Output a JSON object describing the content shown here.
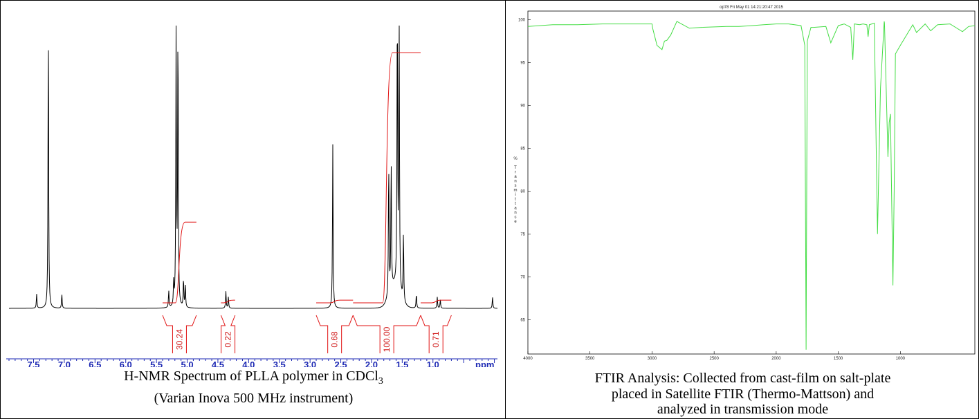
{
  "chart_data": [
    {
      "type": "line",
      "spectrum": "H-NMR",
      "xlabel": "ppm",
      "xlim": [
        7.9,
        -0.05
      ],
      "x_ticks": [
        "7.5",
        "7.0",
        "6.5",
        "6.0",
        "5.5",
        "5.0",
        "4.5",
        "4.0",
        "3.5",
        "3.0",
        "2.5",
        "2.0",
        "1.5",
        "1.0"
      ],
      "x_tick_values": [
        7.5,
        7.0,
        6.5,
        6.0,
        5.5,
        5.0,
        4.5,
        4.0,
        3.5,
        3.0,
        2.5,
        2.0,
        1.5,
        1.0
      ],
      "peaks": [
        {
          "ppm": 7.45,
          "height": 0.05
        },
        {
          "ppm": 7.26,
          "height": 1.0
        },
        {
          "ppm": 7.04,
          "height": 0.05
        },
        {
          "ppm": 5.3,
          "height": 0.06
        },
        {
          "ppm": 5.22,
          "height": 0.08
        },
        {
          "ppm": 5.18,
          "height": 1.0
        },
        {
          "ppm": 5.15,
          "height": 1.0
        },
        {
          "ppm": 5.06,
          "height": 0.1
        },
        {
          "ppm": 5.03,
          "height": 0.08
        },
        {
          "ppm": 4.37,
          "height": 0.06
        },
        {
          "ppm": 4.33,
          "height": 0.04
        },
        {
          "ppm": 2.63,
          "height": 0.58
        },
        {
          "ppm": 1.72,
          "height": 0.47
        },
        {
          "ppm": 1.68,
          "height": 0.45
        },
        {
          "ppm": 1.58,
          "height": 1.0
        },
        {
          "ppm": 1.55,
          "height": 1.0
        },
        {
          "ppm": 1.48,
          "height": 0.24
        },
        {
          "ppm": 1.27,
          "height": 0.05
        },
        {
          "ppm": 0.93,
          "height": 0.04
        },
        {
          "ppm": 0.88,
          "height": 0.03
        },
        {
          "ppm": 0.03,
          "height": 0.04
        }
      ],
      "integrals": [
        {
          "label": "30.24",
          "from": 5.4,
          "to": 4.85
        },
        {
          "label": "0.22",
          "from": 4.45,
          "to": 4.22
        },
        {
          "label": "0.68",
          "from": 2.9,
          "to": 2.3
        },
        {
          "label": "100.00",
          "from": 2.3,
          "to": 1.2
        },
        {
          "label": "0.71",
          "from": 1.2,
          "to": 0.7
        }
      ]
    },
    {
      "type": "line",
      "spectrum": "FTIR",
      "title": "op78  Fri May 01 14:21:20:47 2015",
      "ylabel": "% Transmittance",
      "ylim": [
        61,
        101
      ],
      "y_ticks": [
        65,
        70,
        75,
        80,
        85,
        90,
        95,
        100
      ],
      "xlim": [
        4000,
        400
      ],
      "x_ticks": [
        4000,
        3500,
        3000,
        2500,
        2000,
        1500,
        1000
      ],
      "series": [
        {
          "x": [
            4000,
            3800,
            3600,
            3400,
            3200,
            3000,
            2995,
            2960,
            2920,
            2900,
            2880,
            2850,
            2800,
            2700,
            2600,
            2400,
            2300,
            2200,
            2100,
            2000,
            1900,
            1800,
            1770,
            1759,
            1750,
            1720,
            1700,
            1600,
            1560,
            1500,
            1452,
            1400,
            1383,
            1370,
            1330,
            1300,
            1270,
            1260,
            1250,
            1230,
            1210,
            1184,
            1160,
            1130,
            1128,
            1100,
            1090,
            1080,
            1060,
            1050,
            1040,
            1000,
            900,
            870,
            800,
            756,
            700,
            600,
            500,
            450,
            400
          ],
          "y": [
            99.2,
            99.4,
            99.4,
            99.5,
            99.5,
            99.5,
            99.0,
            97.0,
            96.5,
            97.5,
            97.6,
            98.2,
            99.8,
            99.0,
            99.1,
            99.2,
            99.2,
            99.3,
            99.4,
            99.5,
            99.5,
            99.3,
            97.0,
            61.5,
            97.5,
            99.1,
            99.1,
            99.2,
            97.3,
            99.3,
            99.5,
            99.1,
            95.3,
            99.5,
            99.4,
            99.5,
            99.4,
            98.0,
            99.4,
            99.5,
            99.6,
            75.0,
            92.0,
            99.8,
            99.6,
            84.0,
            88.0,
            89.0,
            69.0,
            80.0,
            96.0,
            97.0,
            99.4,
            98.5,
            99.5,
            98.7,
            99.4,
            99.5,
            98.6,
            99.2,
            99.3
          ]
        }
      ]
    }
  ],
  "nmr": {
    "ppm_label": "ppm",
    "caption_line1_prefix": "H-NMR Spectrum of PLLA polymer in CDCl",
    "caption_line1_sub": "3",
    "caption_line2": "(Varian Inova 500 MHz instrument)"
  },
  "ftir": {
    "title": "op78  Fri May 01 14:21:20:47 2015",
    "ylabel": "% Transmittance",
    "caption_line1": "FTIR Analysis: Collected from cast-film on salt-plate",
    "caption_line2": "placed in Satellite FTIR (Thermo-Mattson) and",
    "caption_line3": "analyzed in transmission mode"
  },
  "colors": {
    "nmr_trace": "#000000",
    "integral": "#e01010",
    "axis_labels": "#1e2ab4",
    "ftir_trace": "#44dd44"
  }
}
